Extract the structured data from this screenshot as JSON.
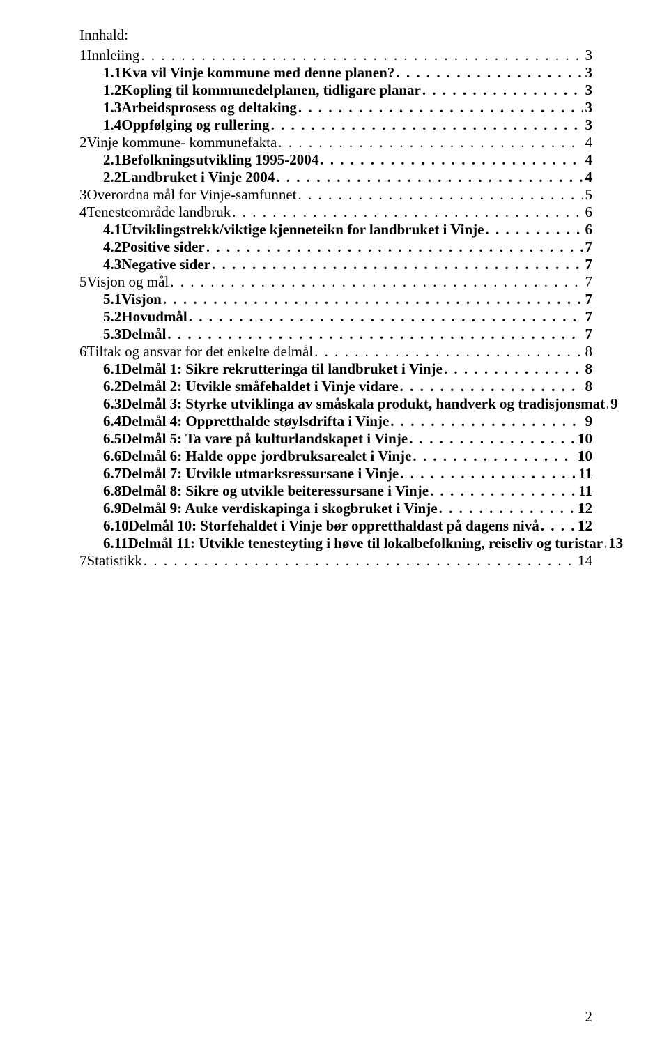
{
  "heading": "Innhald:",
  "footer_page_number": "2",
  "toc": [
    {
      "level": 0,
      "num": "1",
      "label": "Innleiing",
      "page": "3",
      "bold": false
    },
    {
      "level": 1,
      "num": "1.1",
      "label": "Kva vil Vinje kommune med denne planen?",
      "page": "3",
      "bold": true
    },
    {
      "level": 1,
      "num": "1.2",
      "label": "Kopling til kommunedelplanen, tidligare planar",
      "page": "3",
      "bold": true
    },
    {
      "level": 1,
      "num": "1.3",
      "label": "Arbeidsprosess og deltaking",
      "page": "3",
      "bold": true
    },
    {
      "level": 1,
      "num": "1.4",
      "label": "Oppfølging og rullering",
      "page": "3",
      "bold": true
    },
    {
      "level": 0,
      "num": "2",
      "label": "Vinje kommune- kommunefakta",
      "page": "4",
      "bold": false
    },
    {
      "level": 1,
      "num": "2.1",
      "label": "Befolkningsutvikling 1995-2004",
      "page": "4",
      "bold": true
    },
    {
      "level": 1,
      "num": "2.2",
      "label": "Landbruket i Vinje 2004",
      "page": "4",
      "bold": true
    },
    {
      "level": 0,
      "num": "3",
      "label": "Overordna mål for Vinje-samfunnet",
      "page": "5",
      "bold": false
    },
    {
      "level": 0,
      "num": "4",
      "label": "Tenesteområde landbruk",
      "page": "6",
      "bold": false
    },
    {
      "level": 1,
      "num": "4.1",
      "label": "Utviklingstrekk/viktige kjenneteikn for landbruket i Vinje",
      "page": "6",
      "bold": true
    },
    {
      "level": 1,
      "num": "4.2",
      "label": "Positive sider",
      "page": "7",
      "bold": true
    },
    {
      "level": 1,
      "num": "4.3",
      "label": "Negative sider",
      "page": "7",
      "bold": true
    },
    {
      "level": 0,
      "num": "5",
      "label": "Visjon og mål",
      "page": "7",
      "bold": false
    },
    {
      "level": 1,
      "num": "5.1",
      "label": "Visjon",
      "page": "7",
      "bold": true
    },
    {
      "level": 1,
      "num": "5.2",
      "label": "Hovudmål",
      "page": "7",
      "bold": true
    },
    {
      "level": 1,
      "num": "5.3",
      "label": "Delmål",
      "page": "7",
      "bold": true
    },
    {
      "level": 0,
      "num": "6",
      "label": "Tiltak og ansvar for det enkelte delmål",
      "page": "8",
      "bold": false
    },
    {
      "level": 1,
      "num": "6.1",
      "label": "Delmål 1: Sikre rekrutteringa til landbruket i Vinje",
      "page": "8",
      "bold": true
    },
    {
      "level": 1,
      "num": "6.2",
      "label": "Delmål 2: Utvikle småfehaldet i Vinje vidare",
      "page": "8",
      "bold": true
    },
    {
      "level": 1,
      "num": "6.3",
      "label": "Delmål 3: Styrke utviklinga av småskala produkt, handverk og tradisjonsmat",
      "page": "9",
      "bold": true
    },
    {
      "level": 1,
      "num": "6.4",
      "label": "Delmål 4: Oppretthalde støylsdrifta i Vinje",
      "page": "9",
      "bold": true
    },
    {
      "level": 1,
      "num": "6.5",
      "label": "Delmål 5: Ta vare på kulturlandskapet i Vinje",
      "page": "10",
      "bold": true
    },
    {
      "level": 1,
      "num": "6.6",
      "label": "Delmål 6: Halde oppe jordbruksarealet i Vinje",
      "page": "10",
      "bold": true
    },
    {
      "level": 1,
      "num": "6.7",
      "label": "Delmål 7: Utvikle utmarksressursane i Vinje",
      "page": "11",
      "bold": true
    },
    {
      "level": 1,
      "num": "6.8",
      "label": "Delmål 8: Sikre og utvikle beiteressursane i Vinje",
      "page": "11",
      "bold": true
    },
    {
      "level": 1,
      "num": "6.9",
      "label": "Delmål 9: Auke verdiskapinga i skogbruket i Vinje",
      "page": "12",
      "bold": true
    },
    {
      "level": 1,
      "num": "6.10",
      "label": "Delmål 10: Storfehaldet i Vinje bør oppretthaldast på dagens nivå",
      "page": "12",
      "bold": true
    },
    {
      "level": 1,
      "num": "6.11",
      "label": "Delmål 11: Utvikle tenesteyting i høve til lokalbefolkning, reiseliv og turistar",
      "page": "13",
      "bold": true
    },
    {
      "level": 0,
      "num": "7",
      "label": "Statistikk",
      "page": "14",
      "bold": false
    }
  ]
}
